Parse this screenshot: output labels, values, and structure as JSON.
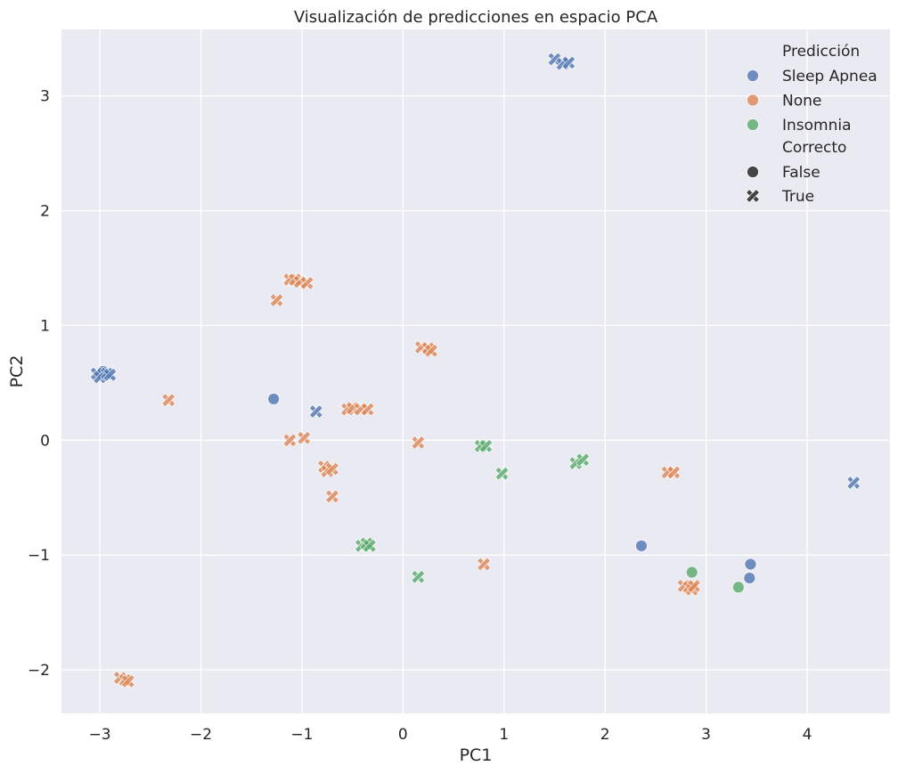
{
  "chart_data": {
    "type": "scatter",
    "title": "Visualización de predicciones en espacio PCA",
    "xlabel": "PC1",
    "ylabel": "PC2",
    "xlim": [
      -3.38,
      4.82
    ],
    "ylim": [
      -2.38,
      3.58
    ],
    "xticks": [
      -3,
      -2,
      -1,
      0,
      1,
      2,
      3,
      4
    ],
    "xtick_labels": [
      "−3",
      "−2",
      "−1",
      "0",
      "1",
      "2",
      "3",
      "4"
    ],
    "yticks": [
      -2,
      -1,
      0,
      1,
      2,
      3
    ],
    "ytick_labels": [
      "−2",
      "−1",
      "0",
      "1",
      "2",
      "3"
    ],
    "grid": true,
    "legend_position": "top-right",
    "legend": {
      "hue_title": "Predicción",
      "style_title": "Correcto",
      "hue_entries": [
        {
          "label": "Sleep Apnea",
          "color": "#4c72b0"
        },
        {
          "label": "None",
          "color": "#dd8452"
        },
        {
          "label": "Insomnia",
          "color": "#55a868"
        }
      ],
      "style_entries": [
        {
          "label": "False",
          "marker": "circle"
        },
        {
          "label": "True",
          "marker": "x"
        }
      ]
    },
    "colors": {
      "background": "#eaeaf2",
      "grid": "#ffffff",
      "Sleep Apnea": "#4c72b0",
      "None": "#dd8452",
      "Insomnia": "#55a868",
      "legend_marker": "#444444"
    },
    "series": [
      {
        "pred": "Sleep Apnea",
        "correct": false,
        "points": [
          [
            -2.97,
            0.6
          ],
          [
            -1.28,
            0.36
          ],
          [
            2.36,
            -0.92
          ],
          [
            3.44,
            -1.08
          ],
          [
            3.43,
            -1.2
          ]
        ]
      },
      {
        "pred": "Sleep Apnea",
        "correct": true,
        "points": [
          [
            -3.03,
            0.58
          ],
          [
            -3.0,
            0.55
          ],
          [
            -2.93,
            0.58
          ],
          [
            -2.9,
            0.57
          ],
          [
            -0.86,
            0.25
          ],
          [
            1.5,
            3.32
          ],
          [
            1.58,
            3.28
          ],
          [
            1.64,
            3.29
          ],
          [
            4.46,
            -0.37
          ]
        ]
      },
      {
        "pred": "None",
        "correct": true,
        "points": [
          [
            -2.8,
            -2.07
          ],
          [
            -2.75,
            -2.09
          ],
          [
            -2.72,
            -2.1
          ],
          [
            -2.32,
            0.35
          ],
          [
            -1.25,
            1.22
          ],
          [
            -1.12,
            1.4
          ],
          [
            -1.07,
            1.4
          ],
          [
            -1.02,
            1.38
          ],
          [
            -0.95,
            1.37
          ],
          [
            -1.12,
            0.0
          ],
          [
            -0.98,
            0.02
          ],
          [
            -0.78,
            -0.23
          ],
          [
            -0.75,
            -0.27
          ],
          [
            -0.7,
            -0.25
          ],
          [
            -0.7,
            -0.49
          ],
          [
            -0.55,
            0.27
          ],
          [
            -0.5,
            0.28
          ],
          [
            -0.42,
            0.27
          ],
          [
            -0.35,
            0.27
          ],
          [
            0.15,
            -0.02
          ],
          [
            0.18,
            0.81
          ],
          [
            0.25,
            0.8
          ],
          [
            0.28,
            0.78
          ],
          [
            0.8,
            -1.08
          ],
          [
            2.62,
            -0.28
          ],
          [
            2.68,
            -0.28
          ],
          [
            2.78,
            -1.27
          ],
          [
            2.83,
            -1.28
          ],
          [
            2.86,
            -1.3
          ],
          [
            2.88,
            -1.27
          ]
        ]
      },
      {
        "pred": "Insomnia",
        "correct": true,
        "points": [
          [
            -0.41,
            -0.92
          ],
          [
            -0.36,
            -0.9
          ],
          [
            -0.33,
            -0.92
          ],
          [
            0.15,
            -1.19
          ],
          [
            0.77,
            -0.05
          ],
          [
            0.82,
            -0.05
          ],
          [
            0.98,
            -0.29
          ],
          [
            1.71,
            -0.2
          ],
          [
            1.78,
            -0.17
          ]
        ]
      },
      {
        "pred": "Insomnia",
        "correct": false,
        "points": [
          [
            2.86,
            -1.15
          ],
          [
            3.32,
            -1.28
          ]
        ]
      }
    ]
  }
}
